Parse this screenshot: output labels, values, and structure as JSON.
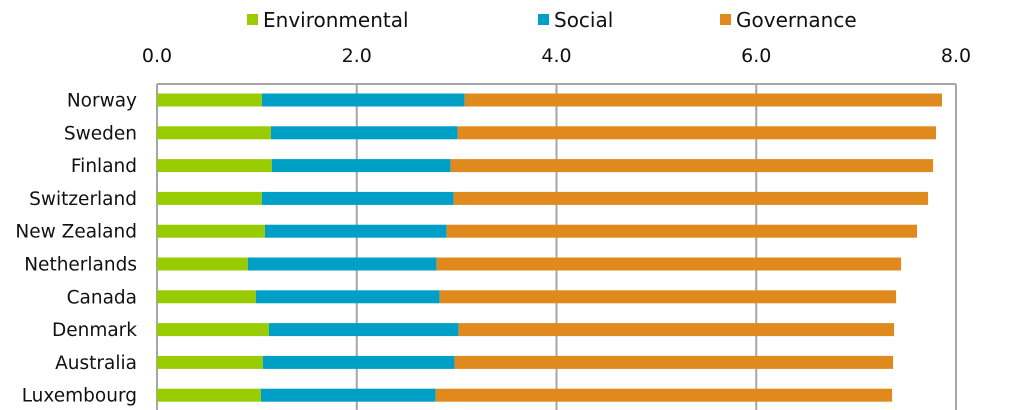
{
  "chart_data": {
    "type": "bar",
    "orientation": "horizontal",
    "stacked": true,
    "title": "",
    "xlabel": "",
    "ylabel": "",
    "xlim": [
      0,
      8
    ],
    "x_ticks": [
      "0.0",
      "2.0",
      "4.0",
      "6.0",
      "8.0"
    ],
    "x_tick_values": [
      0,
      2,
      4,
      6,
      8
    ],
    "x_axis_position": "top",
    "grid": true,
    "legend_position": "top",
    "categories": [
      "Norway",
      "Sweden",
      "Finland",
      "Switzerland",
      "New Zealand",
      "Netherlands",
      "Canada",
      "Denmark",
      "Australia",
      "Luxembourg"
    ],
    "series": [
      {
        "name": "Environmental",
        "color": "#99CC00",
        "values": [
          1.05,
          1.14,
          1.15,
          1.05,
          1.08,
          0.91,
          0.99,
          1.12,
          1.06,
          1.04
        ]
      },
      {
        "name": "Social",
        "color": "#00A0C6",
        "values": [
          2.03,
          1.87,
          1.79,
          1.92,
          1.82,
          1.89,
          1.84,
          1.9,
          1.92,
          1.75
        ]
      },
      {
        "name": "Governance",
        "color": "#E08A1E",
        "values": [
          4.78,
          4.79,
          4.83,
          4.75,
          4.71,
          4.65,
          4.57,
          4.36,
          4.39,
          4.57
        ]
      }
    ]
  }
}
